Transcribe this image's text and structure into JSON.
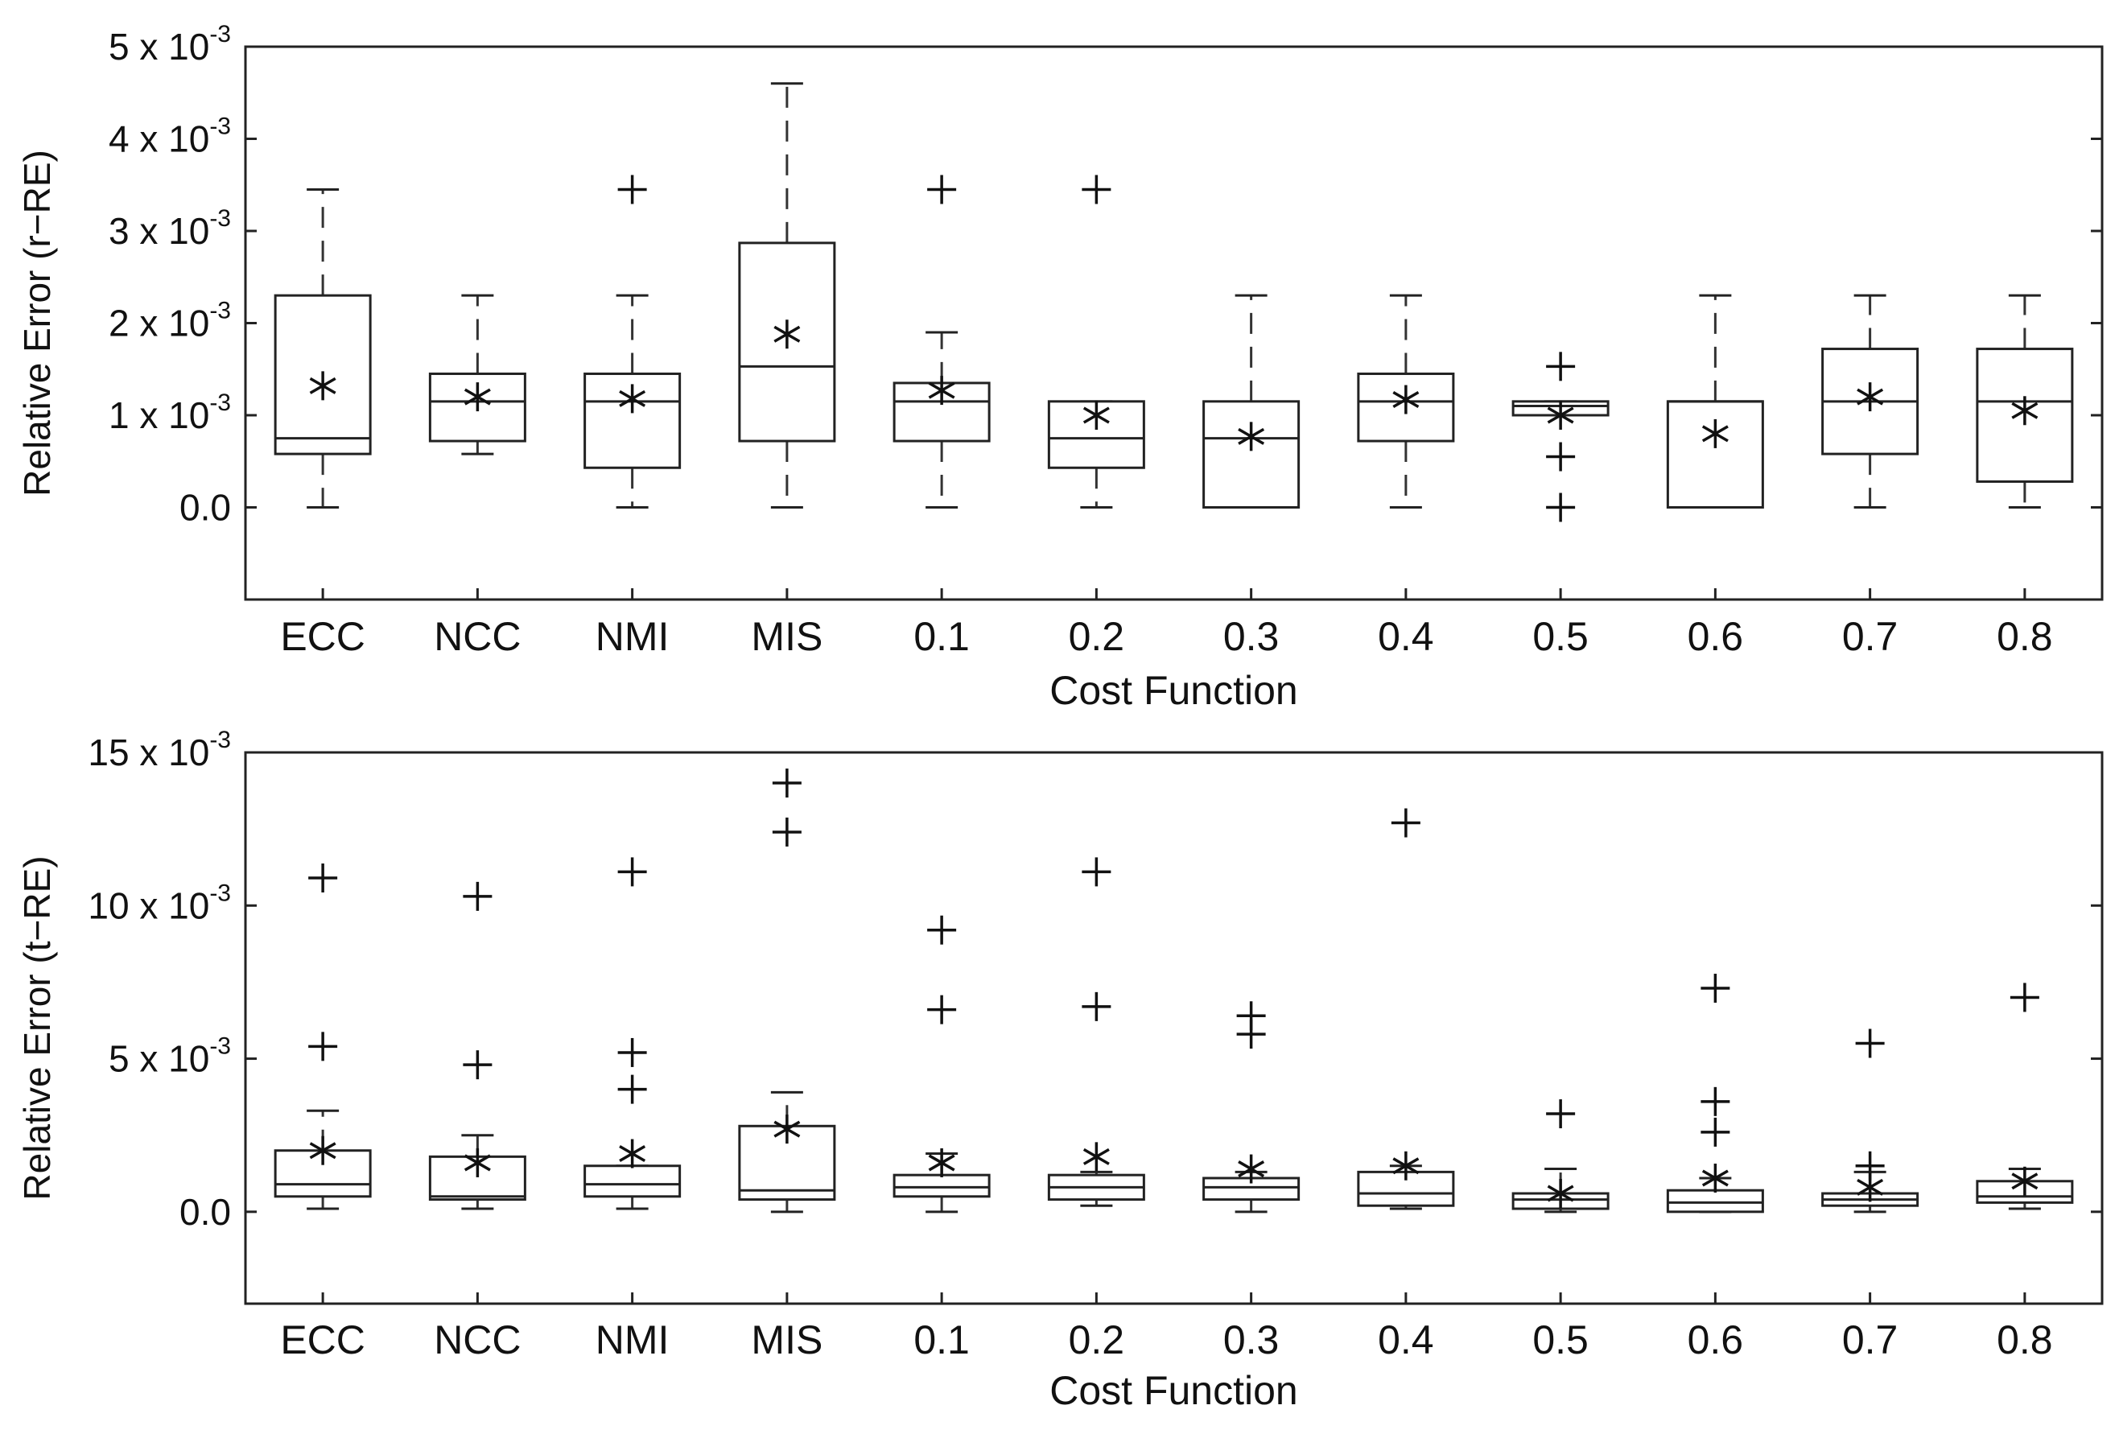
{
  "chart_data": [
    {
      "type": "box",
      "title": "",
      "xlabel": "Cost Function",
      "ylabel": "Relative Error (r−RE)",
      "ylim": [
        -1,
        5
      ],
      "y_unit_exponent": "-3",
      "y_ticks": [
        {
          "value": 0,
          "base": "0.0",
          "exp": ""
        },
        {
          "value": 1,
          "base": "1 x 10",
          "exp": "-3"
        },
        {
          "value": 2,
          "base": "2 x 10",
          "exp": "-3"
        },
        {
          "value": 3,
          "base": "3 x 10",
          "exp": "-3"
        },
        {
          "value": 4,
          "base": "4 x 10",
          "exp": "-3"
        },
        {
          "value": 5,
          "base": "5 x 10",
          "exp": "-3"
        }
      ],
      "categories": [
        "ECC",
        "NCC",
        "NMI",
        "MIS",
        "0.1",
        "0.2",
        "0.3",
        "0.4",
        "0.5",
        "0.6",
        "0.7",
        "0.8"
      ],
      "boxes": [
        {
          "q1": 0.58,
          "median": 0.75,
          "q3": 2.3,
          "whisker_low": 0.0,
          "whisker_high": 3.45,
          "mean": 1.32,
          "outliers": []
        },
        {
          "q1": 0.72,
          "median": 1.15,
          "q3": 1.45,
          "whisker_low": 0.58,
          "whisker_high": 2.3,
          "mean": 1.2,
          "outliers": []
        },
        {
          "q1": 0.43,
          "median": 1.15,
          "q3": 1.45,
          "whisker_low": 0.0,
          "whisker_high": 2.3,
          "mean": 1.18,
          "outliers": [
            3.45
          ]
        },
        {
          "q1": 0.72,
          "median": 1.53,
          "q3": 2.87,
          "whisker_low": 0.0,
          "whisker_high": 4.6,
          "mean": 1.88,
          "outliers": []
        },
        {
          "q1": 0.72,
          "median": 1.15,
          "q3": 1.35,
          "whisker_low": 0.0,
          "whisker_high": 1.9,
          "mean": 1.27,
          "outliers": [
            3.45
          ]
        },
        {
          "q1": 0.43,
          "median": 0.75,
          "q3": 1.15,
          "whisker_low": 0.0,
          "whisker_high": 1.15,
          "mean": 1.0,
          "outliers": [
            3.45
          ]
        },
        {
          "q1": 0.0,
          "median": 0.75,
          "q3": 1.15,
          "whisker_low": 0.0,
          "whisker_high": 2.3,
          "mean": 0.77,
          "outliers": []
        },
        {
          "q1": 0.72,
          "median": 1.15,
          "q3": 1.45,
          "whisker_low": 0.0,
          "whisker_high": 2.3,
          "mean": 1.17,
          "outliers": []
        },
        {
          "q1": 1.0,
          "median": 1.1,
          "q3": 1.15,
          "whisker_low": 1.0,
          "whisker_high": 1.15,
          "mean": 1.0,
          "outliers": [
            0.0,
            0.55,
            1.53
          ]
        },
        {
          "q1": 0.0,
          "median": 1.15,
          "q3": 1.15,
          "whisker_low": 0.0,
          "whisker_high": 2.3,
          "mean": 0.8,
          "outliers": []
        },
        {
          "q1": 0.58,
          "median": 1.15,
          "q3": 1.72,
          "whisker_low": 0.0,
          "whisker_high": 2.3,
          "mean": 1.2,
          "outliers": []
        },
        {
          "q1": 0.28,
          "median": 1.15,
          "q3": 1.72,
          "whisker_low": 0.0,
          "whisker_high": 2.3,
          "mean": 1.05,
          "outliers": []
        }
      ]
    },
    {
      "type": "box",
      "title": "",
      "xlabel": "Cost Function",
      "ylabel": "Relative Error (t−RE)",
      "ylim": [
        -3,
        15
      ],
      "y_unit_exponent": "-3",
      "y_ticks": [
        {
          "value": 0,
          "base": "0.0",
          "exp": ""
        },
        {
          "value": 5,
          "base": "5 x 10",
          "exp": "-3"
        },
        {
          "value": 10,
          "base": "10 x 10",
          "exp": "-3"
        },
        {
          "value": 15,
          "base": "15 x 10",
          "exp": "-3"
        }
      ],
      "categories": [
        "ECC",
        "NCC",
        "NMI",
        "MIS",
        "0.1",
        "0.2",
        "0.3",
        "0.4",
        "0.5",
        "0.6",
        "0.7",
        "0.8"
      ],
      "boxes": [
        {
          "q1": 0.5,
          "median": 0.9,
          "q3": 2.0,
          "whisker_low": 0.1,
          "whisker_high": 3.3,
          "mean": 2.0,
          "outliers": [
            5.4,
            10.9
          ]
        },
        {
          "q1": 0.4,
          "median": 0.5,
          "q3": 1.8,
          "whisker_low": 0.1,
          "whisker_high": 2.5,
          "mean": 1.6,
          "outliers": [
            4.8,
            10.3
          ]
        },
        {
          "q1": 0.5,
          "median": 0.9,
          "q3": 1.5,
          "whisker_low": 0.1,
          "whisker_high": 1.5,
          "mean": 1.9,
          "outliers": [
            4.0,
            5.2,
            11.1
          ]
        },
        {
          "q1": 0.4,
          "median": 0.7,
          "q3": 2.8,
          "whisker_low": 0.0,
          "whisker_high": 3.9,
          "mean": 2.7,
          "outliers": [
            12.4,
            14.0
          ]
        },
        {
          "q1": 0.5,
          "median": 0.8,
          "q3": 1.2,
          "whisker_low": 0.0,
          "whisker_high": 1.9,
          "mean": 1.6,
          "outliers": [
            6.6,
            9.2
          ]
        },
        {
          "q1": 0.4,
          "median": 0.8,
          "q3": 1.2,
          "whisker_low": 0.2,
          "whisker_high": 1.3,
          "mean": 1.8,
          "outliers": [
            6.7,
            11.1
          ]
        },
        {
          "q1": 0.4,
          "median": 0.8,
          "q3": 1.1,
          "whisker_low": 0.0,
          "whisker_high": 1.3,
          "mean": 1.4,
          "outliers": [
            5.8,
            6.4
          ]
        },
        {
          "q1": 0.2,
          "median": 0.6,
          "q3": 1.3,
          "whisker_low": 0.1,
          "whisker_high": 1.5,
          "mean": 1.5,
          "outliers": [
            12.7
          ]
        },
        {
          "q1": 0.1,
          "median": 0.4,
          "q3": 0.6,
          "whisker_low": 0.0,
          "whisker_high": 1.4,
          "mean": 0.6,
          "outliers": [
            3.2
          ]
        },
        {
          "q1": 0.0,
          "median": 0.3,
          "q3": 0.7,
          "whisker_low": 0.0,
          "whisker_high": 1.1,
          "mean": 1.1,
          "outliers": [
            2.6,
            3.6,
            7.3
          ]
        },
        {
          "q1": 0.2,
          "median": 0.4,
          "q3": 0.6,
          "whisker_low": 0.0,
          "whisker_high": 1.3,
          "mean": 0.8,
          "outliers": [
            1.5,
            5.5
          ]
        },
        {
          "q1": 0.3,
          "median": 0.5,
          "q3": 1.0,
          "whisker_low": 0.1,
          "whisker_high": 1.4,
          "mean": 1.0,
          "outliers": [
            7.0
          ]
        }
      ]
    }
  ]
}
